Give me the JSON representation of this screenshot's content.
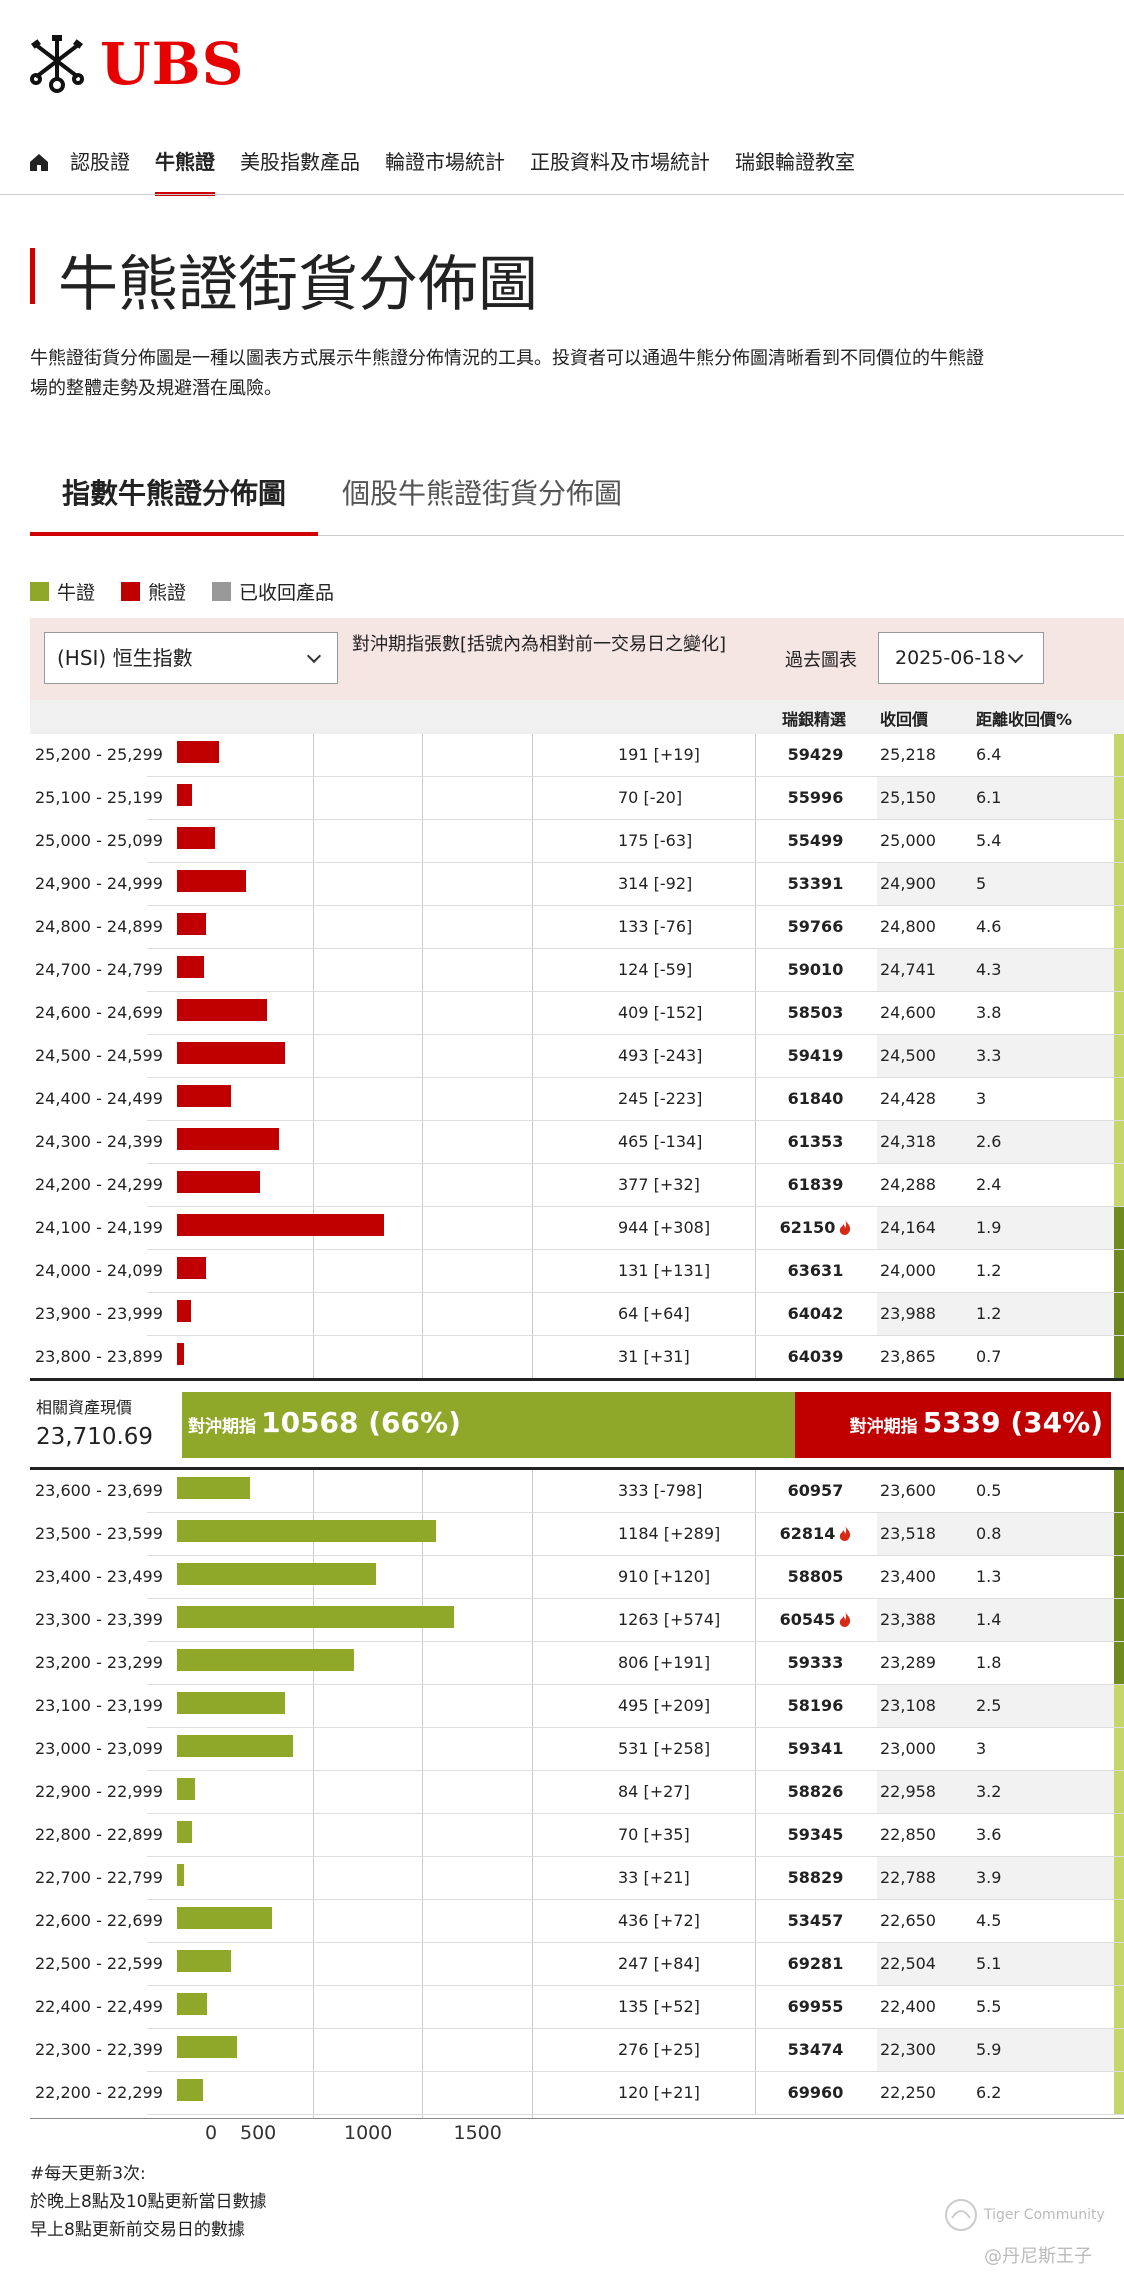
{
  "brand": {
    "name": "UBS",
    "color": "#e60000"
  },
  "nav": {
    "home_icon": "home-icon",
    "items": [
      {
        "label": "認股證",
        "active": false
      },
      {
        "label": "牛熊證",
        "active": true
      },
      {
        "label": "美股指數產品",
        "active": false
      },
      {
        "label": "輪證市場統計",
        "active": false
      },
      {
        "label": "正股資料及市場統計",
        "active": false
      },
      {
        "label": "瑞銀輪證教室",
        "active": false
      }
    ]
  },
  "page": {
    "title": "牛熊證街貨分佈圖",
    "description_line1": "牛熊證街貨分佈圖是一種以圖表方式展示牛熊證分佈情況的工具。投資者可以通過牛熊分佈圖清晰看到不同價位的牛熊證",
    "description_line2": "場的整體走勢及規避潛在風險。"
  },
  "tabs": [
    {
      "label": "指數牛熊證分佈圖",
      "active": true
    },
    {
      "label": "個股牛熊證街貨分佈圖",
      "active": false
    }
  ],
  "legend": [
    {
      "label": "牛證",
      "color": "#8fa82a"
    },
    {
      "label": "熊證",
      "color": "#c00000"
    },
    {
      "label": "已收回產品",
      "color": "#999999"
    }
  ],
  "controls": {
    "index_select": "(HSI) 恒生指數",
    "hedge_label": "對沖期指張數[括號內為相對前一交易日之變化]",
    "past_chart_label": "過去圖表",
    "date_select": "2025-06-18"
  },
  "table_headers": {
    "ubs_pick": "瑞銀精選",
    "call_price": "收回價",
    "distance": "距離收回價%"
  },
  "chart_data": {
    "type": "bar",
    "orientation": "horizontal",
    "x_ticks": [
      0,
      500,
      1000,
      1500
    ],
    "xlim": [
      0,
      1625
    ],
    "bear_rows": [
      {
        "range": "25,200 - 25,299",
        "value": 191,
        "label": "191 [+19]",
        "code": "59429",
        "call": "25,218",
        "dist": "6.4",
        "hot": false
      },
      {
        "range": "25,100 - 25,199",
        "value": 70,
        "label": "70 [-20]",
        "code": "55996",
        "call": "25,150",
        "dist": "6.1",
        "hot": false
      },
      {
        "range": "25,000 - 25,099",
        "value": 175,
        "label": "175 [-63]",
        "code": "55499",
        "call": "25,000",
        "dist": "5.4",
        "hot": false
      },
      {
        "range": "24,900 - 24,999",
        "value": 314,
        "label": "314 [-92]",
        "code": "53391",
        "call": "24,900",
        "dist": "5",
        "hot": false
      },
      {
        "range": "24,800 - 24,899",
        "value": 133,
        "label": "133 [-76]",
        "code": "59766",
        "call": "24,800",
        "dist": "4.6",
        "hot": false
      },
      {
        "range": "24,700 - 24,799",
        "value": 124,
        "label": "124 [-59]",
        "code": "59010",
        "call": "24,741",
        "dist": "4.3",
        "hot": false
      },
      {
        "range": "24,600 - 24,699",
        "value": 409,
        "label": "409 [-152]",
        "code": "58503",
        "call": "24,600",
        "dist": "3.8",
        "hot": false
      },
      {
        "range": "24,500 - 24,599",
        "value": 493,
        "label": "493 [-243]",
        "code": "59419",
        "call": "24,500",
        "dist": "3.3",
        "hot": false
      },
      {
        "range": "24,400 - 24,499",
        "value": 245,
        "label": "245 [-223]",
        "code": "61840",
        "call": "24,428",
        "dist": "3",
        "hot": false
      },
      {
        "range": "24,300 - 24,399",
        "value": 465,
        "label": "465 [-134]",
        "code": "61353",
        "call": "24,318",
        "dist": "2.6",
        "hot": false
      },
      {
        "range": "24,200 - 24,299",
        "value": 377,
        "label": "377 [+32]",
        "code": "61839",
        "call": "24,288",
        "dist": "2.4",
        "hot": false
      },
      {
        "range": "24,100 - 24,199",
        "value": 944,
        "label": "944 [+308]",
        "code": "62150",
        "call": "24,164",
        "dist": "1.9",
        "hot": true
      },
      {
        "range": "24,000 - 24,099",
        "value": 131,
        "label": "131 [+131]",
        "code": "63631",
        "call": "24,000",
        "dist": "1.2",
        "hot": false
      },
      {
        "range": "23,900 - 23,999",
        "value": 64,
        "label": "64 [+64]",
        "code": "64042",
        "call": "23,988",
        "dist": "1.2",
        "hot": false
      },
      {
        "range": "23,800 - 23,899",
        "value": 31,
        "label": "31 [+31]",
        "code": "64039",
        "call": "23,865",
        "dist": "0.7",
        "hot": false
      }
    ],
    "bull_rows": [
      {
        "range": "23,600 - 23,699",
        "value": 333,
        "label": "333 [-798]",
        "code": "60957",
        "call": "23,600",
        "dist": "0.5",
        "hot": false
      },
      {
        "range": "23,500 - 23,599",
        "value": 1184,
        "label": "1184 [+289]",
        "code": "62814",
        "call": "23,518",
        "dist": "0.8",
        "hot": true
      },
      {
        "range": "23,400 - 23,499",
        "value": 910,
        "label": "910 [+120]",
        "code": "58805",
        "call": "23,400",
        "dist": "1.3",
        "hot": false
      },
      {
        "range": "23,300 - 23,399",
        "value": 1263,
        "label": "1263 [+574]",
        "code": "60545",
        "call": "23,388",
        "dist": "1.4",
        "hot": true
      },
      {
        "range": "23,200 - 23,299",
        "value": 806,
        "label": "806 [+191]",
        "code": "59333",
        "call": "23,289",
        "dist": "1.8",
        "hot": false
      },
      {
        "range": "23,100 - 23,199",
        "value": 495,
        "label": "495 [+209]",
        "code": "58196",
        "call": "23,108",
        "dist": "2.5",
        "hot": false
      },
      {
        "range": "23,000 - 23,099",
        "value": 531,
        "label": "531 [+258]",
        "code": "59341",
        "call": "23,000",
        "dist": "3",
        "hot": false
      },
      {
        "range": "22,900 - 22,999",
        "value": 84,
        "label": "84 [+27]",
        "code": "58826",
        "call": "22,958",
        "dist": "3.2",
        "hot": false
      },
      {
        "range": "22,800 - 22,899",
        "value": 70,
        "label": "70 [+35]",
        "code": "59345",
        "call": "22,850",
        "dist": "3.6",
        "hot": false
      },
      {
        "range": "22,700 - 22,799",
        "value": 33,
        "label": "33 [+21]",
        "code": "58829",
        "call": "22,788",
        "dist": "3.9",
        "hot": false
      },
      {
        "range": "22,600 - 22,699",
        "value": 436,
        "label": "436 [+72]",
        "code": "53457",
        "call": "22,650",
        "dist": "4.5",
        "hot": false
      },
      {
        "range": "22,500 - 22,599",
        "value": 247,
        "label": "247 [+84]",
        "code": "69281",
        "call": "22,504",
        "dist": "5.1",
        "hot": false
      },
      {
        "range": "22,400 - 22,499",
        "value": 135,
        "label": "135 [+52]",
        "code": "69955",
        "call": "22,400",
        "dist": "5.5",
        "hot": false
      },
      {
        "range": "22,300 - 22,399",
        "value": 276,
        "label": "276 [+25]",
        "code": "53474",
        "call": "22,300",
        "dist": "5.9",
        "hot": false
      },
      {
        "range": "22,200 - 22,299",
        "value": 120,
        "label": "120 [+21]",
        "code": "69960",
        "call": "22,250",
        "dist": "6.2",
        "hot": false
      }
    ],
    "bull_color": "#8fa82a",
    "bear_color": "#c00000"
  },
  "summary": {
    "spot_label": "相關資產現價",
    "spot_value": "23,710.69",
    "bull_text": "對沖期指",
    "bull_count": "10568 (66%)",
    "bear_text": "對沖期指",
    "bear_count": "5339 (34%)",
    "bull_share": 0.66
  },
  "footer": {
    "line1": "#每天更新3次:",
    "line2": "於晚上8點及10點更新當日數據",
    "line3": "早上8點更新前交易日的數據"
  },
  "watermark": {
    "line1": "Tiger Community",
    "line2": "@丹尼斯王子"
  }
}
